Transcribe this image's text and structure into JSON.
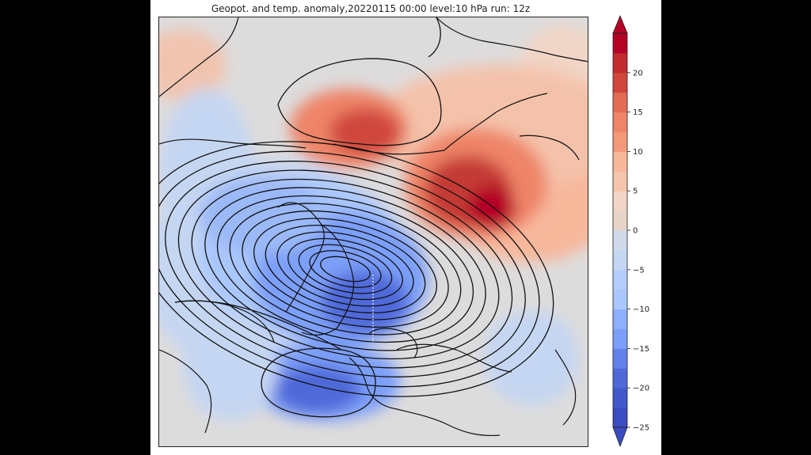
{
  "title": "Geopot. and temp. anomaly,20220115 00:00 level:10 hPa run: 12z",
  "colorbar": {
    "min": -25,
    "max": 25,
    "step": 2.5,
    "tick_labels": [
      "20",
      "15",
      "10",
      "5",
      "0",
      "−5",
      "−10",
      "−15",
      "−20",
      "−25"
    ],
    "tick_values": [
      20,
      15,
      10,
      5,
      0,
      -5,
      -10,
      -15,
      -20,
      -25
    ],
    "colors": {
      "deep_red": "#b40426",
      "red": "#d0473d",
      "salmon": "#ee8468",
      "light_salmon": "#f7b89c",
      "pale": "#f1d5c6",
      "neutral": "#dddcdc",
      "pale_blue": "#c5d6f2",
      "light_blue": "#aac7fd",
      "blue": "#7b9ff9",
      "deep_blue": "#4f69d9",
      "navy": "#3b4cc0"
    }
  },
  "map": {
    "field": "temperature anomaly",
    "contours": "geopotential height",
    "level": "10 hPa"
  }
}
